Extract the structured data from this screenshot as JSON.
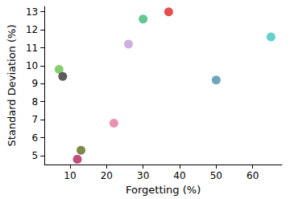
{
  "chart_data": {
    "type": "scatter",
    "x_label": "Forgetting (%)",
    "y_label": "Standard Deviation (%)",
    "x": [
      7,
      8,
      12,
      13,
      22,
      26,
      30,
      37,
      50,
      65
    ],
    "values": [
      9.8,
      9.4,
      4.8,
      5.3,
      6.8,
      11.2,
      12.6,
      13.0,
      9.2,
      11.6
    ],
    "colors": [
      "#6cc24a",
      "#333333",
      "#b0205a",
      "#5c6b1f",
      "#e3779f",
      "#c39bd8",
      "#3cb878",
      "#dd2222",
      "#4a8fa8",
      "#3fc4c4"
    ],
    "xlim": [
      3,
      68
    ],
    "xticks": [
      10,
      20,
      30,
      40,
      50,
      60
    ],
    "ylim": [
      4.5,
      13.3
    ],
    "yticks": [
      5,
      6,
      7,
      8,
      9,
      10,
      11,
      12,
      13
    ],
    "grid": false,
    "marker": "circle"
  }
}
